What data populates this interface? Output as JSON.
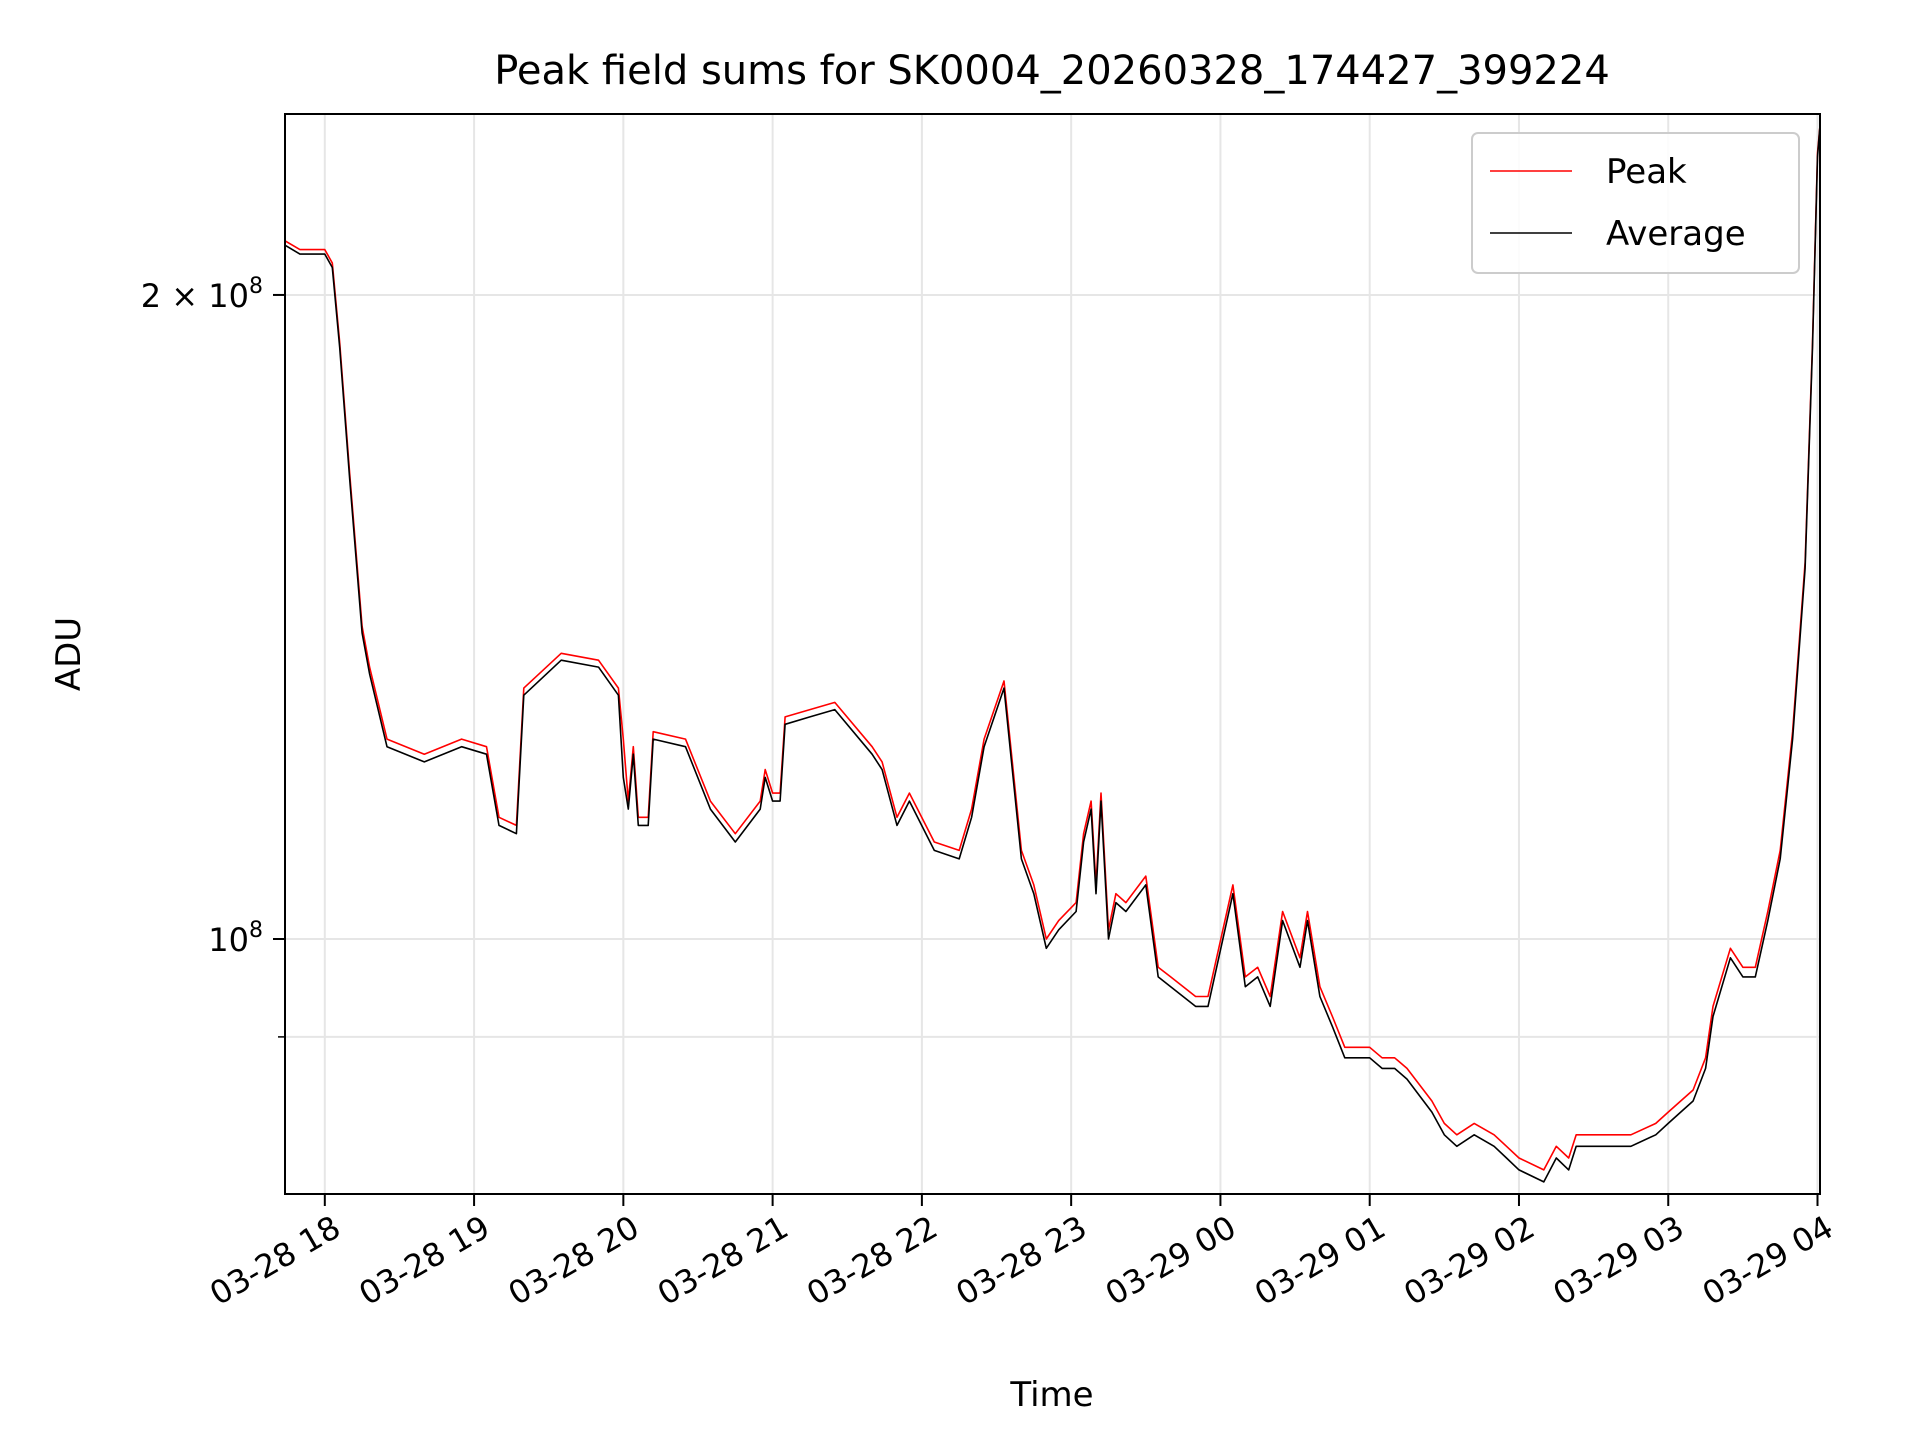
{
  "chart_data": {
    "type": "line",
    "title": "Peak field sums for SK0004_20260328_174427_399224",
    "xlabel": "Time",
    "ylabel": "ADU",
    "x_range": [
      "2026-03-28 17:44",
      "2026-03-29 04:01"
    ],
    "ylim": [
      76000000,
      243000000
    ],
    "yscale": "log",
    "grid": true,
    "legend_position": "top-right",
    "x_ticks": [
      {
        "value": "2026-03-28 18:00",
        "label": "03-28 18"
      },
      {
        "value": "2026-03-28 19:00",
        "label": "03-28 19"
      },
      {
        "value": "2026-03-28 20:00",
        "label": "03-28 20"
      },
      {
        "value": "2026-03-28 21:00",
        "label": "03-28 21"
      },
      {
        "value": "2026-03-28 22:00",
        "label": "03-28 22"
      },
      {
        "value": "2026-03-28 23:00",
        "label": "03-28 23"
      },
      {
        "value": "2026-03-29 00:00",
        "label": "03-29 00"
      },
      {
        "value": "2026-03-29 01:00",
        "label": "03-29 01"
      },
      {
        "value": "2026-03-29 02:00",
        "label": "03-29 02"
      },
      {
        "value": "2026-03-29 03:00",
        "label": "03-29 03"
      },
      {
        "value": "2026-03-29 04:00",
        "label": "03-29 04"
      }
    ],
    "y_ticks": [
      {
        "value": 100000000,
        "base": "10",
        "exp": "8"
      },
      {
        "value": 200000000,
        "coef": "2 × ",
        "base": "10",
        "exp": "8"
      }
    ],
    "y_minor_ticks": [
      90000000
    ],
    "series": [
      {
        "name": "Peak",
        "color": "#ff0000",
        "x": [
          "2026-03-28 17:44",
          "2026-03-28 17:50",
          "2026-03-28 18:00",
          "2026-03-28 18:03",
          "2026-03-28 18:06",
          "2026-03-28 18:10",
          "2026-03-28 18:15",
          "2026-03-28 18:18",
          "2026-03-28 18:25",
          "2026-03-28 18:40",
          "2026-03-28 18:55",
          "2026-03-28 19:05",
          "2026-03-28 19:10",
          "2026-03-28 19:17",
          "2026-03-28 19:20",
          "2026-03-28 19:35",
          "2026-03-28 19:50",
          "2026-03-28 19:58",
          "2026-03-28 20:00",
          "2026-03-28 20:02",
          "2026-03-28 20:04",
          "2026-03-28 20:06",
          "2026-03-28 20:10",
          "2026-03-28 20:12",
          "2026-03-28 20:25",
          "2026-03-28 20:35",
          "2026-03-28 20:45",
          "2026-03-28 20:55",
          "2026-03-28 20:57",
          "2026-03-28 21:00",
          "2026-03-28 21:03",
          "2026-03-28 21:05",
          "2026-03-28 21:15",
          "2026-03-28 21:25",
          "2026-03-28 21:40",
          "2026-03-28 21:44",
          "2026-03-28 21:50",
          "2026-03-28 21:55",
          "2026-03-28 22:05",
          "2026-03-28 22:15",
          "2026-03-28 22:20",
          "2026-03-28 22:25",
          "2026-03-28 22:33",
          "2026-03-28 22:40",
          "2026-03-28 22:45",
          "2026-03-28 22:50",
          "2026-03-28 22:55",
          "2026-03-28 23:02",
          "2026-03-28 23:05",
          "2026-03-28 23:08",
          "2026-03-28 23:10",
          "2026-03-28 23:12",
          "2026-03-28 23:15",
          "2026-03-28 23:18",
          "2026-03-28 23:22",
          "2026-03-28 23:30",
          "2026-03-28 23:35",
          "2026-03-28 23:40",
          "2026-03-28 23:50",
          "2026-03-28 23:55",
          "2026-03-29 00:05",
          "2026-03-29 00:10",
          "2026-03-29 00:15",
          "2026-03-29 00:20",
          "2026-03-29 00:25",
          "2026-03-29 00:32",
          "2026-03-29 00:35",
          "2026-03-29 00:40",
          "2026-03-29 00:45",
          "2026-03-29 00:50",
          "2026-03-29 01:00",
          "2026-03-29 01:05",
          "2026-03-29 01:10",
          "2026-03-29 01:15",
          "2026-03-29 01:25",
          "2026-03-29 01:30",
          "2026-03-29 01:35",
          "2026-03-29 01:42",
          "2026-03-29 01:50",
          "2026-03-29 01:55",
          "2026-03-29 02:00",
          "2026-03-29 02:10",
          "2026-03-29 02:15",
          "2026-03-29 02:20",
          "2026-03-29 02:23",
          "2026-03-29 02:30",
          "2026-03-29 02:35",
          "2026-03-29 02:45",
          "2026-03-29 02:55",
          "2026-03-29 03:00",
          "2026-03-29 03:05",
          "2026-03-29 03:10",
          "2026-03-29 03:15",
          "2026-03-29 03:18",
          "2026-03-29 03:25",
          "2026-03-29 03:30",
          "2026-03-29 03:35",
          "2026-03-29 03:40",
          "2026-03-29 03:45",
          "2026-03-29 03:50",
          "2026-03-29 03:55",
          "2026-03-29 03:58",
          "2026-03-29 04:00",
          "2026-03-29 04:01"
        ],
        "values": [
          212000000,
          210000000,
          210000000,
          207000000,
          190000000,
          165000000,
          140000000,
          134000000,
          124000000,
          122000000,
          124000000,
          123000000,
          114000000,
          113000000,
          131000000,
          136000000,
          135000000,
          131000000,
          124000000,
          116000000,
          123000000,
          114000000,
          114000000,
          125000000,
          124000000,
          116000000,
          112000000,
          116000000,
          120000000,
          117000000,
          117000000,
          127000000,
          128000000,
          129000000,
          123000000,
          121000000,
          114000000,
          117000000,
          111000000,
          110000000,
          115000000,
          124000000,
          132000000,
          110000000,
          106000000,
          100000000,
          102000000,
          104000000,
          112000000,
          116000000,
          106000000,
          117000000,
          101000000,
          105000000,
          104000000,
          107000000,
          97000000,
          96000000,
          94000000,
          94000000,
          106000000,
          96000000,
          97000000,
          94000000,
          103000000,
          98000000,
          103000000,
          95000000,
          92000000,
          89000000,
          89000000,
          88000000,
          88000000,
          87000000,
          84000000,
          82000000,
          81000000,
          82000000,
          81000000,
          80000000,
          79000000,
          78000000,
          80000000,
          79000000,
          81000000,
          81000000,
          81000000,
          81000000,
          82000000,
          83000000,
          84000000,
          85000000,
          88000000,
          93000000,
          99000000,
          97000000,
          97000000,
          103000000,
          110000000,
          125000000,
          150000000,
          190000000,
          233000000,
          240000000
        ]
      },
      {
        "name": "Average",
        "color": "#000000",
        "x": [
          "2026-03-28 17:44",
          "2026-03-28 17:50",
          "2026-03-28 18:00",
          "2026-03-28 18:03",
          "2026-03-28 18:06",
          "2026-03-28 18:10",
          "2026-03-28 18:15",
          "2026-03-28 18:18",
          "2026-03-28 18:25",
          "2026-03-28 18:40",
          "2026-03-28 18:55",
          "2026-03-28 19:05",
          "2026-03-28 19:10",
          "2026-03-28 19:17",
          "2026-03-28 19:20",
          "2026-03-28 19:35",
          "2026-03-28 19:50",
          "2026-03-28 19:58",
          "2026-03-28 20:00",
          "2026-03-28 20:02",
          "2026-03-28 20:04",
          "2026-03-28 20:06",
          "2026-03-28 20:10",
          "2026-03-28 20:12",
          "2026-03-28 20:25",
          "2026-03-28 20:35",
          "2026-03-28 20:45",
          "2026-03-28 20:55",
          "2026-03-28 20:57",
          "2026-03-28 21:00",
          "2026-03-28 21:03",
          "2026-03-28 21:05",
          "2026-03-28 21:15",
          "2026-03-28 21:25",
          "2026-03-28 21:40",
          "2026-03-28 21:44",
          "2026-03-28 21:50",
          "2026-03-28 21:55",
          "2026-03-28 22:05",
          "2026-03-28 22:15",
          "2026-03-28 22:20",
          "2026-03-28 22:25",
          "2026-03-28 22:33",
          "2026-03-28 22:40",
          "2026-03-28 22:45",
          "2026-03-28 22:50",
          "2026-03-28 22:55",
          "2026-03-28 23:02",
          "2026-03-28 23:05",
          "2026-03-28 23:08",
          "2026-03-28 23:10",
          "2026-03-28 23:12",
          "2026-03-28 23:15",
          "2026-03-28 23:18",
          "2026-03-28 23:22",
          "2026-03-28 23:30",
          "2026-03-28 23:35",
          "2026-03-28 23:40",
          "2026-03-28 23:50",
          "2026-03-28 23:55",
          "2026-03-29 00:05",
          "2026-03-29 00:10",
          "2026-03-29 00:15",
          "2026-03-29 00:20",
          "2026-03-29 00:25",
          "2026-03-29 00:32",
          "2026-03-29 00:35",
          "2026-03-29 00:40",
          "2026-03-29 00:45",
          "2026-03-29 00:50",
          "2026-03-29 01:00",
          "2026-03-29 01:05",
          "2026-03-29 01:10",
          "2026-03-29 01:15",
          "2026-03-29 01:25",
          "2026-03-29 01:30",
          "2026-03-29 01:35",
          "2026-03-29 01:42",
          "2026-03-29 01:50",
          "2026-03-29 01:55",
          "2026-03-29 02:00",
          "2026-03-29 02:10",
          "2026-03-29 02:15",
          "2026-03-29 02:20",
          "2026-03-29 02:23",
          "2026-03-29 02:30",
          "2026-03-29 02:35",
          "2026-03-29 02:45",
          "2026-03-29 02:55",
          "2026-03-29 03:00",
          "2026-03-29 03:05",
          "2026-03-29 03:10",
          "2026-03-29 03:15",
          "2026-03-29 03:18",
          "2026-03-29 03:25",
          "2026-03-29 03:30",
          "2026-03-29 03:35",
          "2026-03-29 03:40",
          "2026-03-29 03:45",
          "2026-03-29 03:50",
          "2026-03-29 03:55",
          "2026-03-29 03:58",
          "2026-03-29 04:00",
          "2026-03-29 04:01"
        ],
        "values": [
          211000000,
          209000000,
          209000000,
          206000000,
          189000000,
          164000000,
          139000000,
          133000000,
          123000000,
          121000000,
          123000000,
          122000000,
          113000000,
          112000000,
          130000000,
          135000000,
          134000000,
          130000000,
          119000000,
          115000000,
          122000000,
          113000000,
          113000000,
          124000000,
          123000000,
          115000000,
          111000000,
          115000000,
          119000000,
          116000000,
          116000000,
          126000000,
          127000000,
          128000000,
          122000000,
          120000000,
          113000000,
          116000000,
          110000000,
          109000000,
          114000000,
          123000000,
          131000000,
          109000000,
          105000000,
          99000000,
          101000000,
          103000000,
          111000000,
          115000000,
          105000000,
          116000000,
          100000000,
          104000000,
          103000000,
          106000000,
          96000000,
          95000000,
          93000000,
          93000000,
          105000000,
          95000000,
          96000000,
          93000000,
          102000000,
          97000000,
          102000000,
          94000000,
          91000000,
          88000000,
          88000000,
          87000000,
          87000000,
          86000000,
          83000000,
          81000000,
          80000000,
          81000000,
          80000000,
          79000000,
          78000000,
          77000000,
          79000000,
          78000000,
          80000000,
          80000000,
          80000000,
          80000000,
          81000000,
          82000000,
          83000000,
          84000000,
          87000000,
          92000000,
          98000000,
          96000000,
          96000000,
          102000000,
          109000000,
          124000000,
          149000000,
          189000000,
          232000000,
          240000000
        ]
      }
    ]
  }
}
